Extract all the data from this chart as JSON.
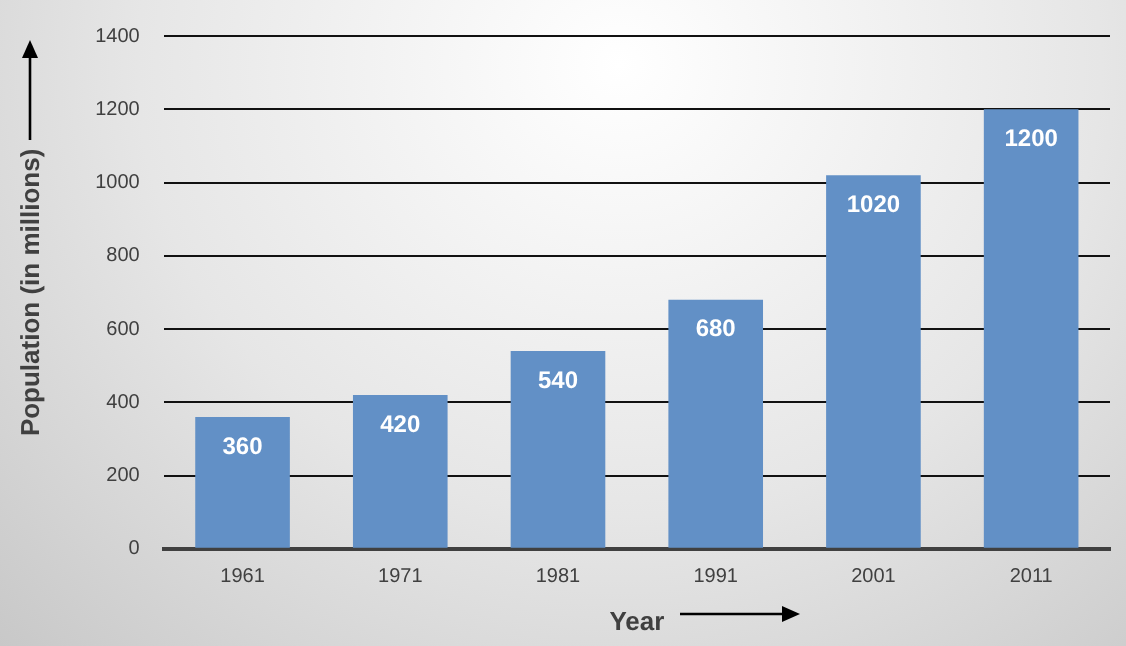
{
  "chart_data": {
    "type": "bar",
    "xlabel": "Year",
    "ylabel": "Population (in millions)",
    "categories": [
      "1961",
      "1971",
      "1981",
      "1991",
      "2001",
      "2011"
    ],
    "values": [
      360,
      420,
      540,
      680,
      1020,
      1200
    ],
    "color": "#6290c6",
    "ylim": [
      0,
      1400
    ],
    "yticks": [
      0,
      200,
      400,
      600,
      800,
      1000,
      1200,
      1400
    ],
    "grid": "y",
    "data_labels": true
  }
}
